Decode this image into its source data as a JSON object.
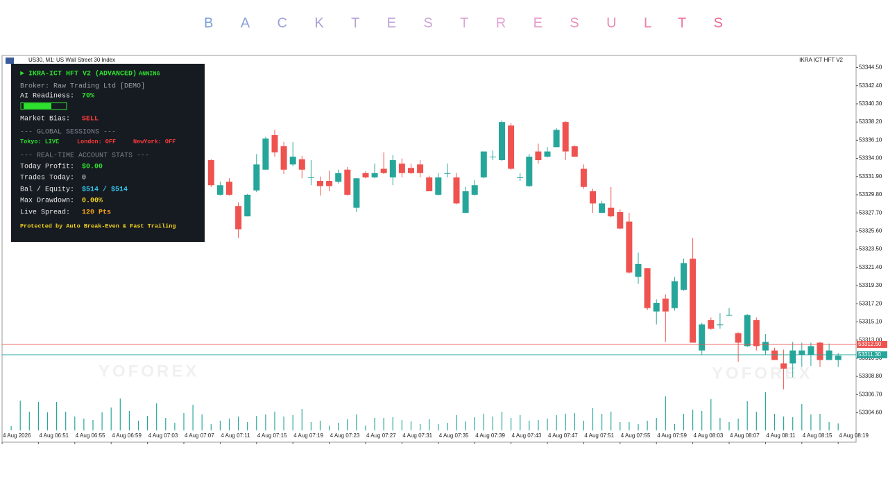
{
  "header": {
    "title": "BACKTESTRESULTS"
  },
  "chart_data": {
    "type": "candlestick",
    "symbol": "US30, M1: US Wall Street 30 Index",
    "indicator": "IKRA ICT HFT V2",
    "watermark": "YOFOREX",
    "up_color": "#26a69a",
    "down_color": "#ef5350",
    "categories": [
      "4 Aug 2026",
      null,
      null,
      null,
      "4 Aug 06:51",
      null,
      null,
      null,
      "4 Aug 06:55",
      null,
      null,
      null,
      "4 Aug 06:59",
      null,
      null,
      null,
      "4 Aug 07:03",
      null,
      null,
      null,
      "4 Aug 07:07",
      null,
      null,
      null,
      "4 Aug 07:11",
      null,
      null,
      null,
      "4 Aug 07:15",
      null,
      null,
      null,
      "4 Aug 07:19",
      null,
      null,
      null,
      "4 Aug 07:23",
      null,
      null,
      null,
      "4 Aug 07:27",
      null,
      null,
      null,
      "4 Aug 07:31",
      null,
      null,
      null,
      "4 Aug 07:35",
      null,
      null,
      null,
      "4 Aug 07:39",
      null,
      null,
      null,
      "4 Aug 07:43",
      null,
      null,
      null,
      "4 Aug 07:47",
      null,
      null,
      null,
      "4 Aug 07:51",
      null,
      null,
      null,
      "4 Aug 07:55",
      null,
      null,
      null,
      "4 Aug 07:59",
      null,
      null,
      null,
      "4 Aug 08:03",
      null,
      null,
      null,
      "4 Aug 08:07",
      null,
      null,
      null,
      "4 Aug 08:11",
      null,
      null,
      null,
      "4 Aug 08:15",
      null,
      null,
      null,
      "4 Aug 08:19"
    ],
    "open": [
      null,
      null,
      null,
      null,
      null,
      null,
      null,
      null,
      null,
      null,
      null,
      null,
      null,
      null,
      null,
      null,
      null,
      null,
      null,
      null,
      null,
      null,
      null,
      53333.8,
      53329.8,
      53331.3,
      53328.5,
      53327.3,
      53330.3,
      53332.7,
      53336.7,
      53335.4,
      53333.3,
      53333.9,
      53331.8,
      53331.4,
      53331.4,
      53331.3,
      53332.7,
      53328.3,
      53332.3,
      53331.8,
      53332.8,
      53331.8,
      53333.4,
      53332.9,
      53333.3,
      53331.8,
      53329.8,
      53332.3,
      53331.8,
      53327.7,
      53329.8,
      53331.8,
      53334.2,
      53333.8,
      53337.8,
      53331.8,
      53330.8,
      53334.8,
      53334.2,
      53335.3,
      53338.2,
      53335.4,
      53332.8,
      53330.2,
      53327.7,
      53328.3,
      53327.8,
      53326.7,
      53320.3,
      53321.3,
      53316.3,
      53317.8,
      53316.7,
      53318.8,
      53322.4,
      53311.8,
      53315.3,
      53314.8,
      53315.9,
      53313.8,
      53312.3,
      53315.3,
      53311.8,
      53311.8,
      53310.3,
      53310.3,
      53311.3,
      53311.3,
      53312.7,
      53310.7,
      53310.7
    ],
    "high": [
      null,
      null,
      null,
      null,
      null,
      null,
      null,
      null,
      null,
      null,
      null,
      null,
      null,
      null,
      null,
      null,
      null,
      null,
      null,
      null,
      null,
      null,
      null,
      53333.9,
      53331.3,
      53331.7,
      53328.9,
      53329.9,
      53334.5,
      53336.5,
      53337.3,
      53335.9,
      53335.9,
      53334.3,
      53333.8,
      53331.9,
      53332.6,
      53332.7,
      53333.0,
      53331.7,
      53332.5,
      53333.4,
      53334.7,
      53334.4,
      53334.0,
      53333.4,
      53333.8,
      53332.0,
      53332.3,
      53333.4,
      53332.3,
      53330.7,
      53331.5,
      53334.8,
      53334.9,
      53338.4,
      53338.1,
      53332.3,
      53334.5,
      53335.7,
      53335.3,
      53337.5,
      53338.3,
      53335.5,
      53333.3,
      53330.5,
      53329.1,
      53330.7,
      53328.1,
      53327.7,
      53323.1,
      53321.3,
      53317.7,
      53318.3,
      53320.3,
      53322.4,
      53324.8,
      53315.0,
      53315.6,
      53316.1,
      53316.7,
      53313.9,
      53316.0,
      53315.6,
      53313.7,
      53312.1,
      53311.9,
      53312.8,
      53312.7,
      53312.7,
      53312.8,
      53312.6,
      53311.5
    ],
    "low": [
      null,
      null,
      null,
      null,
      null,
      null,
      null,
      null,
      null,
      null,
      null,
      null,
      null,
      null,
      null,
      null,
      null,
      null,
      null,
      null,
      null,
      null,
      null,
      53330.7,
      53329.7,
      53329.7,
      53324.8,
      53327.3,
      53330.1,
      53332.7,
      53334.2,
      53332.2,
      53333.1,
      53331.7,
      53330.9,
      53329.7,
      53330.2,
      53331.1,
      53329.7,
      53327.8,
      53331.7,
      53331.7,
      53332.2,
      53330.9,
      53331.8,
      53332.2,
      53331.8,
      53330.2,
      53329.7,
      53331.8,
      53328.7,
      53327.7,
      53329.7,
      53331.7,
      53333.8,
      53333.7,
      53332.7,
      53331.4,
      53330.7,
      53333.4,
      53334.1,
      53335.3,
      53333.8,
      53334.2,
      53330.5,
      53327.7,
      53327.7,
      53327.2,
      53325.8,
      53320.7,
      53319.5,
      53316.5,
      53314.8,
      53312.8,
      53316.4,
      53318.7,
      53312.7,
      53311.3,
      53314.2,
      53314.3,
      53315.8,
      53310.5,
      53312.2,
      53311.8,
      53311.3,
      53310.7,
      53307.3,
      53308.7,
      53309.9,
      53310.0,
      53309.9,
      53310.7,
      53309.9
    ],
    "close": [
      null,
      null,
      null,
      null,
      null,
      null,
      null,
      null,
      null,
      null,
      null,
      null,
      null,
      null,
      null,
      null,
      null,
      null,
      null,
      null,
      null,
      null,
      null,
      53330.9,
      53330.9,
      53329.8,
      53325.8,
      53329.8,
      53333.3,
      53336.3,
      53334.7,
      53332.7,
      53334.2,
      53332.7,
      53331.8,
      53330.8,
      53330.8,
      53332.3,
      53329.8,
      53331.7,
      53331.8,
      53332.3,
      53332.3,
      53333.8,
      53332.3,
      53332.3,
      53332.3,
      53330.2,
      53331.8,
      53332.3,
      53328.8,
      53330.2,
      53330.9,
      53334.8,
      53334.2,
      53338.2,
      53332.8,
      53331.8,
      53334.2,
      53333.8,
      53334.8,
      53337.3,
      53334.8,
      53334.2,
      53330.7,
      53328.8,
      53328.8,
      53327.3,
      53325.9,
      53320.8,
      53321.8,
      53316.7,
      53317.3,
      53316.3,
      53319.8,
      53321.9,
      53312.7,
      53314.8,
      53314.3,
      53314.8,
      53315.9,
      53312.7,
      53315.9,
      53312.3,
      53312.8,
      53310.7,
      53309.7,
      53311.8,
      53311.8,
      53312.3,
      53310.7,
      53311.8,
      53311.2
    ],
    "volumes": [
      null,
      6,
      43,
      27,
      41,
      26,
      41,
      27,
      20,
      17,
      15,
      26,
      33,
      46,
      28,
      14,
      21,
      39,
      18,
      11,
      25,
      37,
      23,
      9,
      14,
      17,
      20,
      12,
      21,
      23,
      27,
      20,
      22,
      31,
      12,
      14,
      7,
      11,
      16,
      23,
      7,
      18,
      18,
      19,
      15,
      13,
      9,
      16,
      9,
      11,
      22,
      13,
      19,
      24,
      20,
      27,
      18,
      22,
      14,
      15,
      17,
      22,
      24,
      25,
      14,
      32,
      24,
      27,
      12,
      12,
      9,
      14,
      18,
      49,
      9,
      24,
      30,
      28,
      45,
      18,
      12,
      17,
      42,
      27,
      55,
      24,
      20,
      19,
      38,
      23,
      24,
      12,
      10
    ],
    "ylim": [
      53301.2,
      53345.9
    ],
    "yticks": [
      {
        "value": 53344.5,
        "label": "53344.50"
      },
      {
        "value": 53342.4,
        "label": "53342.40"
      },
      {
        "value": 53340.3,
        "label": "53340.30"
      },
      {
        "value": 53338.2,
        "label": "53338.20"
      },
      {
        "value": 53336.1,
        "label": "53336.10"
      },
      {
        "value": 53334,
        "label": "53334.00"
      },
      {
        "value": 53331.9,
        "label": "53331.90"
      },
      {
        "value": 53329.8,
        "label": "53329.80"
      },
      {
        "value": 53327.7,
        "label": "53327.70"
      },
      {
        "value": 53325.6,
        "label": "53325.60"
      },
      {
        "value": 53323.5,
        "label": "53323.50"
      },
      {
        "value": 53321.4,
        "label": "53321.40"
      },
      {
        "value": 53319.3,
        "label": "53319.30"
      },
      {
        "value": 53317.2,
        "label": "53317.20"
      },
      {
        "value": 53315.1,
        "label": "53315.10"
      },
      {
        "value": 53313,
        "label": "53313.00"
      },
      {
        "value": 53310.9,
        "label": "53310.90"
      },
      {
        "value": 53308.8,
        "label": "53308.80"
      },
      {
        "value": 53306.7,
        "label": "53306.70"
      },
      {
        "value": 53304.6,
        "label": "53304.60"
      }
    ],
    "price_lines": [
      {
        "value": 53312.5,
        "label": "53312.50",
        "color": "#ef5350"
      },
      {
        "value": 53311.3,
        "label": "53311.30",
        "color": "#26a69a"
      }
    ]
  },
  "panel": {
    "title": "► IKRA-ICT HFT V2 (ADVANCED)",
    "title_overlap": "ANNING",
    "broker": "Broker: Raw Trading Ltd [DEMO]",
    "ai_label": "AI Readiness:",
    "ai_value": "70%",
    "bias_label": "Market Bias:",
    "bias_value": "SELL",
    "sessions_header": "--- GLOBAL SESSIONS ---",
    "tokyo": "Tokyo: LIVE",
    "london": "London: OFF",
    "newyork": "NewYork: OFF",
    "stats_header": "--- REAL-TIME ACCOUNT STATS ---",
    "profit_label": "Today Profit:",
    "profit_value": "$0.00",
    "trades_label": "Trades Today:",
    "trades_value": "0",
    "equity_label": "Bal / Equity:",
    "equity_value": "$514 / $514",
    "drawdown_label": "Max Drawdown:",
    "drawdown_value": "0.00%",
    "spread_label": "Live Spread:",
    "spread_value": "120 Pts",
    "footer": "Protected by Auto Break-Even & Fast Trailing"
  }
}
